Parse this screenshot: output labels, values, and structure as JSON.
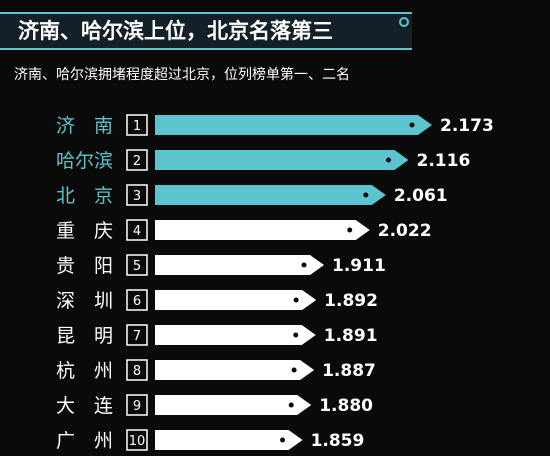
{
  "header": {
    "title": "济南、哈尔滨上位，北京名落第三",
    "subtitle": "济南、哈尔滨拥堵程度超过北京，位列榜单第一、二名"
  },
  "colors": {
    "highlight": "#5cc4cf",
    "normal": "#ffffff",
    "background": "#0a0a0a"
  },
  "chart_data": {
    "type": "bar",
    "orientation": "horizontal",
    "title": "济南、哈尔滨上位，北京名落第三",
    "subtitle": "济南、哈尔滨拥堵程度超过北京，位列榜单第一、二名",
    "categories": [
      "济　南",
      "哈尔滨",
      "北　京",
      "重　庆",
      "贵　阳",
      "深　圳",
      "昆　明",
      "杭　州",
      "大　连",
      "广　州"
    ],
    "ranks": [
      "1",
      "2",
      "3",
      "4",
      "5",
      "6",
      "7",
      "8",
      "9",
      "10"
    ],
    "values": [
      2.173,
      2.116,
      2.061,
      2.022,
      1.911,
      1.892,
      1.891,
      1.887,
      1.88,
      1.859
    ],
    "value_labels": [
      "2.173",
      "2.116",
      "2.061",
      "2.022",
      "1.911",
      "1.892",
      "1.891",
      "1.887",
      "1.880",
      "1.859"
    ],
    "highlighted": [
      true,
      true,
      true,
      false,
      false,
      false,
      false,
      false,
      false,
      false
    ],
    "xlabel": "",
    "ylabel": "",
    "grid": false,
    "legend": "none"
  }
}
